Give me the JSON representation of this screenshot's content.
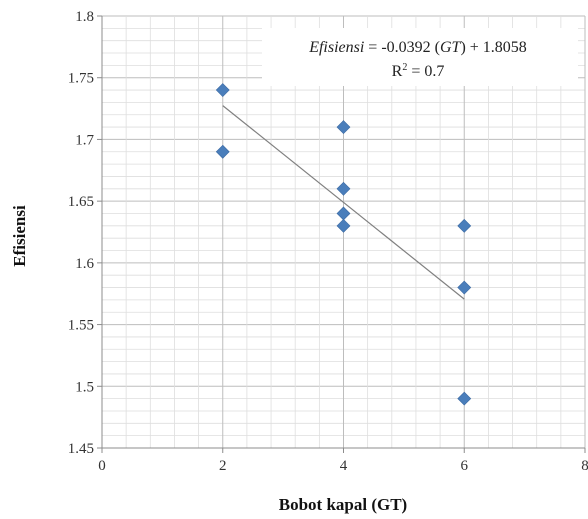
{
  "chart_data": {
    "type": "scatter",
    "title": "",
    "xlabel": "Bobot kapal (GT)",
    "ylabel": "Efisiensi",
    "xlim": [
      0,
      8
    ],
    "ylim": [
      1.45,
      1.8
    ],
    "x_ticks": [
      "0",
      "2",
      "4",
      "6",
      "8"
    ],
    "y_ticks": [
      "1.45",
      "1.5",
      "1.55",
      "1.6",
      "1.65",
      "1.7",
      "1.75",
      "1.8"
    ],
    "grid": {
      "major": true,
      "minor": true
    },
    "legend": "none",
    "series": [
      {
        "marker": "diamond",
        "color": "#4a7ebb",
        "points": [
          {
            "x": 2,
            "y": 1.74
          },
          {
            "x": 2,
            "y": 1.69
          },
          {
            "x": 4,
            "y": 1.71
          },
          {
            "x": 4,
            "y": 1.66
          },
          {
            "x": 4,
            "y": 1.64
          },
          {
            "x": 4,
            "y": 1.63
          },
          {
            "x": 6,
            "y": 1.63
          },
          {
            "x": 6,
            "y": 1.58
          },
          {
            "x": 6,
            "y": 1.49
          }
        ]
      }
    ],
    "trendline": {
      "type": "linear",
      "slope": -0.0392,
      "intercept": 1.8058,
      "x_range": [
        2,
        6
      ],
      "color": "#808080"
    },
    "annotation": {
      "eq_lhs": "Efisiensi",
      "eq_mid": " = -0.0392 (",
      "eq_var": "GT",
      "eq_rhs": ") + 1.8058",
      "r2_prefix": "R",
      "r2_sup": "2",
      "r2_value": " = 0.7"
    }
  }
}
